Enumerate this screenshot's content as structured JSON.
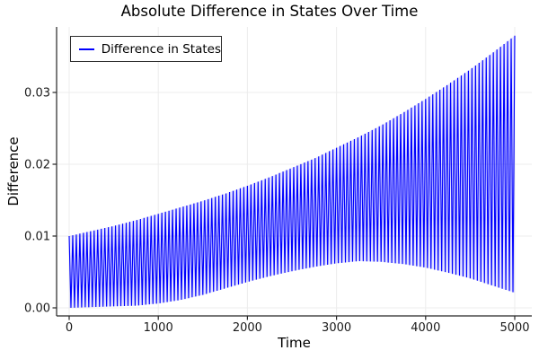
{
  "chart_data": {
    "type": "line",
    "title": "Absolute Difference in States Over Time",
    "xlabel": "Time",
    "ylabel": "Difference",
    "legend_entries": [
      "Difference in States"
    ],
    "legend_position": "top-left",
    "grid": true,
    "series_color": "#0000ff",
    "grid_color": "#ececec",
    "axis_color": "#262626",
    "background_color": "#ffffff",
    "x_tick_labels": [
      "0",
      "1000",
      "2000",
      "3000",
      "4000",
      "5000"
    ],
    "x_ticks": [
      0,
      1000,
      2000,
      3000,
      4000,
      5000
    ],
    "y_tick_labels": [
      "0.00",
      "0.01",
      "0.02",
      "0.03"
    ],
    "y_tick_values": [
      0.0,
      0.01,
      0.02,
      0.03
    ],
    "xlim": [
      -140,
      5190
    ],
    "ylim": [
      -0.0011,
      0.039
    ],
    "oscillation_period": 40,
    "envelope_t": [
      0,
      250,
      500,
      750,
      1000,
      1250,
      1500,
      1750,
      2000,
      2250,
      2500,
      2750,
      3000,
      3250,
      3500,
      3750,
      4000,
      4250,
      4500,
      4750,
      5000
    ],
    "upper_envelope": [
      0.01,
      0.0107,
      0.0114,
      0.0122,
      0.0131,
      0.014,
      0.0149,
      0.0159,
      0.017,
      0.0182,
      0.0195,
      0.0208,
      0.0223,
      0.0238,
      0.0254,
      0.0272,
      0.0291,
      0.0311,
      0.0332,
      0.0355,
      0.0379
    ],
    "lower_envelope": [
      0.0,
      0.0001,
      0.0002,
      0.0003,
      0.0006,
      0.0011,
      0.0018,
      0.0027,
      0.0036,
      0.0044,
      0.0051,
      0.0057,
      0.0062,
      0.0065,
      0.0064,
      0.0061,
      0.0056,
      0.0049,
      0.0041,
      0.0031,
      0.0021
    ]
  }
}
